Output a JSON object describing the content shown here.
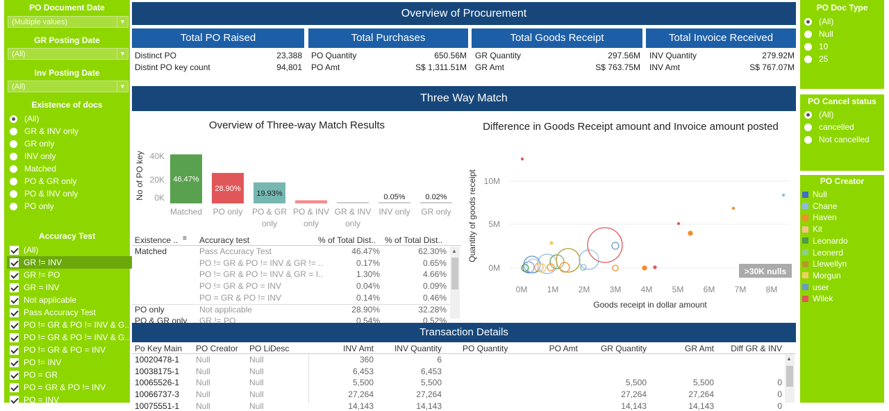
{
  "filters": {
    "po_doc_date": {
      "label": "PO Document Date",
      "value": "(Multiple values)"
    },
    "gr_posting_date": {
      "label": "GR Posting Date",
      "value": "(All)"
    },
    "inv_posting_date": {
      "label": "Inv Posting Date",
      "value": "(All)"
    },
    "existence": {
      "label": "Existence of docs",
      "options": [
        "(All)",
        "GR & INV only",
        "GR only",
        "INV only",
        "Matched",
        "PO & GR only",
        "PO & INV only",
        "PO only"
      ]
    },
    "accuracy": {
      "label": "Accuracy Test",
      "options": [
        "(All)",
        "GR != INV",
        "GR != PO",
        "GR = INV",
        "Not applicable",
        "Pass Accuracy Test",
        "PO != GR & PO != INV & G...",
        "PO != GR & PO != INV & G...",
        "PO != GR & PO = INV",
        "PO != INV",
        "PO = GR",
        "PO = GR & PO != INV",
        "PO = INV"
      ]
    }
  },
  "right": {
    "doc_type": {
      "label": "PO Doc Type",
      "options": [
        "(All)",
        "Null",
        "10",
        "25"
      ]
    },
    "cancel": {
      "label": "PO Cancel status",
      "options": [
        "(All)",
        "cancelled",
        "Not cancelled"
      ]
    },
    "creator": {
      "label": "PO Creator",
      "items": [
        {
          "name": "Null",
          "color": "#3f6fc4"
        },
        {
          "name": "Chane",
          "color": "#8fb8e8"
        },
        {
          "name": "Haven",
          "color": "#f28e2b"
        },
        {
          "name": "Kit",
          "color": "#f6c38a"
        },
        {
          "name": "Leonardo",
          "color": "#4e9a48"
        },
        {
          "name": "Leonerd",
          "color": "#8cd17d"
        },
        {
          "name": "Llewellyn",
          "color": "#b6992d"
        },
        {
          "name": "Morgun",
          "color": "#f1ce63"
        },
        {
          "name": "user",
          "color": "#6b9ac4"
        },
        {
          "name": "Wilek",
          "color": "#e15759"
        }
      ]
    }
  },
  "header": {
    "title": "Overview of Procurement",
    "three_way": "Three Way Match",
    "transactions": "Transaction Details"
  },
  "kpis": [
    {
      "title": "Total PO Raised",
      "rows": [
        [
          "Distinct PO",
          "23,388"
        ],
        [
          "Distint PO key count",
          "94,801"
        ]
      ]
    },
    {
      "title": "Total Purchases",
      "rows": [
        [
          "PO Quantity",
          "650.56M"
        ],
        [
          "PO Amt",
          "S$ 1,311.51M"
        ]
      ]
    },
    {
      "title": "Total Goods Receipt",
      "rows": [
        [
          "GR Quantity",
          "297.56M"
        ],
        [
          "GR Amt",
          "S$ 763.75M"
        ]
      ]
    },
    {
      "title": "Total Invoice Received",
      "rows": [
        [
          "INV Quantity",
          "279.92M"
        ],
        [
          "INV Amt",
          "S$ 767.07M"
        ]
      ]
    }
  ],
  "bar_chart": {
    "title": "Overview of Three-way Match Results",
    "ylabel": "No of PO key",
    "yticks": [
      "40K",
      "20K",
      "0K"
    ],
    "chart_data": {
      "type": "bar",
      "categories": [
        "Matched",
        "PO only",
        "PO & GR only",
        "PO & INV only",
        "GR & INV only",
        "INV only",
        "GR only"
      ],
      "values": [
        46.47,
        28.9,
        19.93,
        3.0,
        0.5,
        0.05,
        0.02
      ],
      "labels": [
        "46.47%",
        "28.90%",
        "19.93%",
        "",
        "",
        "0.05%",
        "0.02%"
      ],
      "colors": [
        "#59a14f",
        "#e15759",
        "#76b7b2",
        "#f28e8e",
        "#cccccc",
        "#cccccc",
        "#cccccc"
      ]
    }
  },
  "scatter": {
    "title": "Difference in Goods Receipt amount and Invoice amount posted",
    "xlabel": "Goods receipt in dollar amount",
    "ylabel": "Quantity of goods receipt",
    "xticks": [
      "0M",
      "1M",
      "2M",
      "3M",
      "4M",
      "5M",
      "6M",
      "7M",
      "8M"
    ],
    "yticks": [
      "10M",
      "5M",
      "0M"
    ],
    "nulls": ">30K nulls"
  },
  "acc_table": {
    "headers": [
      "Existence ..",
      "Accuracy test",
      "% of Total Dist..",
      "% of Total Dist.."
    ],
    "rows": [
      [
        "Matched",
        "Pass Accuracy Test",
        "46.47%",
        "62.30%"
      ],
      [
        "",
        "PO != GR & PO != INV & GR != ..",
        "0.17%",
        "0.65%"
      ],
      [
        "",
        "PO != GR & PO != INV & GR = I..",
        "1.30%",
        "4.66%"
      ],
      [
        "",
        "PO != GR & PO = INV",
        "0.04%",
        "0.09%"
      ],
      [
        "",
        "PO = GR & PO != INV",
        "0.14%",
        "0.46%"
      ],
      [
        "PO only",
        "Not applicable",
        "28.90%",
        "32.28%"
      ],
      [
        "PO & GR only",
        "GR != PO",
        "0.54%",
        "0.52%"
      ]
    ]
  },
  "tx_table": {
    "headers": [
      "Po Key Main",
      "PO Creator",
      "PO LiDesc",
      "INV Amt",
      "INV Quantity",
      "PO Quantity",
      "PO Amt",
      "GR Quantity",
      "GR Amt",
      "Diff GR & INV"
    ],
    "rows": [
      [
        "10020478-1",
        "Null",
        "Null",
        "360",
        "6",
        "",
        "",
        "",
        "",
        ""
      ],
      [
        "10038175-1",
        "Null",
        "Null",
        "6,453",
        "6,453",
        "",
        "",
        "",
        "",
        ""
      ],
      [
        "10065526-1",
        "Null",
        "Null",
        "5,500",
        "5,500",
        "",
        "",
        "5,500",
        "5,500",
        "0"
      ],
      [
        "10066737-3",
        "Null",
        "Null",
        "27,264",
        "27,264",
        "",
        "",
        "27,264",
        "27,264",
        "0"
      ],
      [
        "10075551-1",
        "Null",
        "Null",
        "14,143",
        "14,143",
        "",
        "",
        "14,143",
        "14,143",
        "0"
      ]
    ]
  },
  "colors": {
    "panel_green": "#8ed600",
    "navy": "#17477a",
    "kpi_blue": "#1d5fa6"
  }
}
